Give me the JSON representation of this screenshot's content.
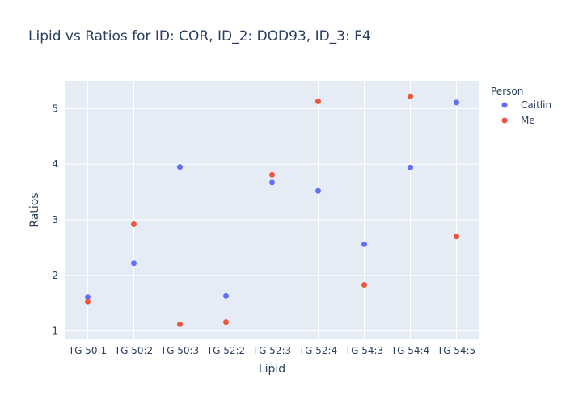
{
  "chart_data": {
    "type": "scatter",
    "title": "Lipid vs Ratios for ID: COR, ID_2: DOD93, ID_3: F4",
    "xlabel": "Lipid",
    "ylabel": "Ratios",
    "categories": [
      "TG 50:1",
      "TG 50:2",
      "TG 50:3",
      "TG 52:2",
      "TG 52:3",
      "TG 52:4",
      "TG 54:3",
      "TG 54:4",
      "TG 54:5"
    ],
    "ylim": [
      0.85,
      5.5
    ],
    "yticks": [
      1,
      2,
      3,
      4,
      5
    ],
    "grid": true,
    "legend": {
      "title": "Person",
      "placement": "right"
    },
    "series": [
      {
        "name": "Caitlin",
        "color": "#636efa",
        "values": [
          1.61,
          2.22,
          3.95,
          1.63,
          3.67,
          3.52,
          2.56,
          3.94,
          5.11
        ]
      },
      {
        "name": "Me",
        "color": "#ef553b",
        "values": [
          1.53,
          2.92,
          1.12,
          1.16,
          3.81,
          5.13,
          1.83,
          5.22,
          2.7
        ]
      }
    ]
  }
}
